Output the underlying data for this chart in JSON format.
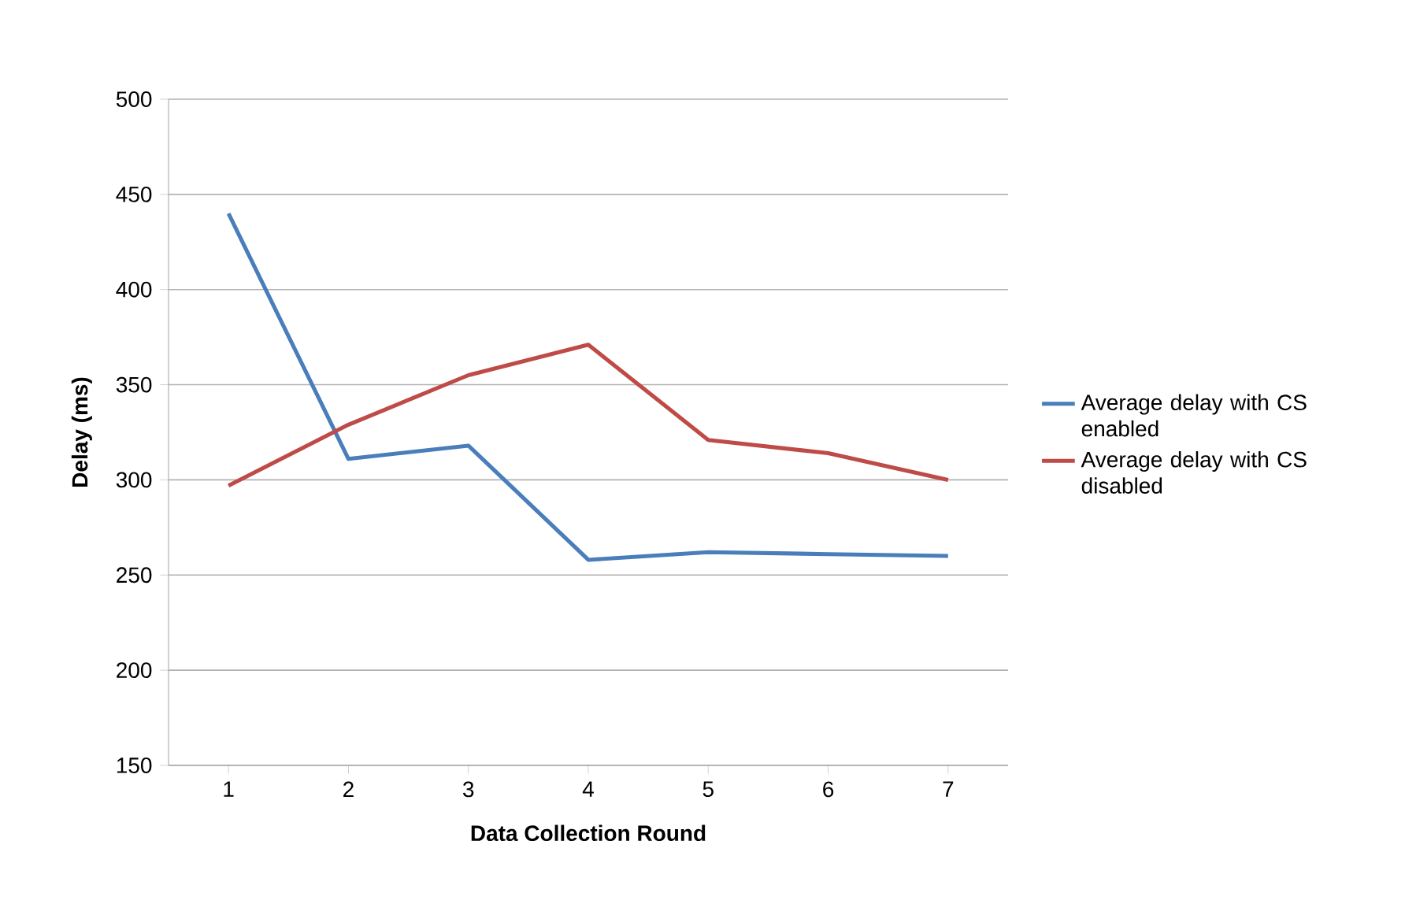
{
  "chart_data": {
    "type": "line",
    "xlabel": "Data Collection Round",
    "ylabel": "Delay (ms)",
    "categories": [
      "1",
      "2",
      "3",
      "4",
      "5",
      "6",
      "7"
    ],
    "series": [
      {
        "name": "Average delay  with CS enabled",
        "color": "#4a7ebb",
        "values": [
          440,
          311,
          318,
          258,
          262,
          261,
          260
        ]
      },
      {
        "name": "Average delay  with CS disabled",
        "color": "#be4b48",
        "values": [
          297,
          329,
          355,
          371,
          321,
          314,
          300
        ]
      }
    ],
    "ylim": [
      150,
      500
    ],
    "yticks": [
      150,
      200,
      250,
      300,
      350,
      400,
      450,
      500
    ],
    "grid": "y",
    "legend": "right",
    "marker": "none",
    "line_style": "solid"
  }
}
